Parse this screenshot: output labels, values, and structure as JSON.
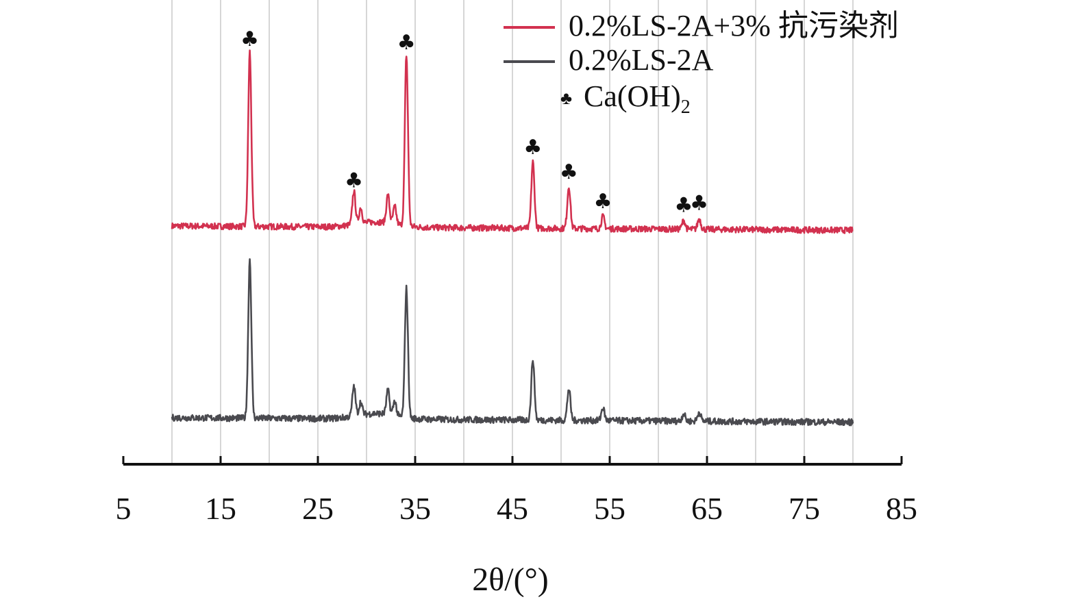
{
  "chart_data": {
    "type": "line",
    "xlabel": "2θ/(°)",
    "ylabel": "",
    "xlim": [
      5,
      85
    ],
    "xticks": [
      5,
      15,
      25,
      35,
      45,
      55,
      65,
      75,
      85
    ],
    "grid": "vertical lines",
    "legend_position": "top-right",
    "series": [
      {
        "name": "0.2%LS-2A+3% 抗污染剂",
        "color": "#d2314f",
        "baseline": 0.0,
        "peaks": [
          {
            "x": 18.0,
            "y": 1.0
          },
          {
            "x": 28.7,
            "y": 0.19
          },
          {
            "x": 29.4,
            "y": 0.09
          },
          {
            "x": 32.2,
            "y": 0.16
          },
          {
            "x": 32.9,
            "y": 0.1
          },
          {
            "x": 34.1,
            "y": 0.98
          },
          {
            "x": 47.1,
            "y": 0.38
          },
          {
            "x": 50.8,
            "y": 0.24
          },
          {
            "x": 54.3,
            "y": 0.07
          },
          {
            "x": 62.6,
            "y": 0.05
          },
          {
            "x": 64.2,
            "y": 0.06
          }
        ]
      },
      {
        "name": "0.2%LS-2A",
        "color": "#4a4a4f",
        "baseline": 0.0,
        "peaks": [
          {
            "x": 18.0,
            "y": 0.86
          },
          {
            "x": 28.7,
            "y": 0.16
          },
          {
            "x": 29.4,
            "y": 0.07
          },
          {
            "x": 32.2,
            "y": 0.13
          },
          {
            "x": 32.9,
            "y": 0.08
          },
          {
            "x": 34.1,
            "y": 0.7
          },
          {
            "x": 47.1,
            "y": 0.33
          },
          {
            "x": 50.8,
            "y": 0.17
          },
          {
            "x": 54.3,
            "y": 0.07
          },
          {
            "x": 62.6,
            "y": 0.04
          },
          {
            "x": 64.2,
            "y": 0.05
          }
        ]
      }
    ],
    "annotations": {
      "symbol": "♣",
      "phase_label": "Ca(OH)",
      "phase_subscript": "2",
      "marked_peaks_x": [
        18.0,
        28.7,
        34.1,
        47.1,
        50.8,
        54.3,
        62.6,
        64.2
      ]
    }
  }
}
